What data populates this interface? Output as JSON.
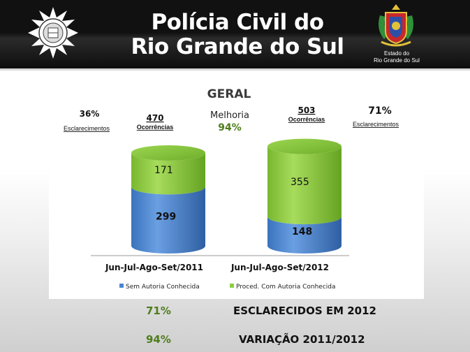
{
  "header": {
    "title_line1": "Polícia Civil do",
    "title_line2": "Rio Grande do Sul",
    "state_line1": "Estado do",
    "state_line2": "Rio Grande do Sul"
  },
  "chart_data": {
    "type": "bar",
    "stacked": true,
    "style": "3d-cylinder",
    "title": "GERAL",
    "categories": [
      "Jun-Jul-Ago-Set/2011",
      "Jun-Jul-Ago-Set/2012"
    ],
    "series": [
      {
        "name": "Sem Autoria Conhecida",
        "values": [
          299,
          148
        ],
        "color": "#4a86d4"
      },
      {
        "name": "Proced. Com Autoria Conhecida",
        "values": [
          171,
          355
        ],
        "color": "#8ccf3f"
      }
    ],
    "totals": [
      {
        "value": "470",
        "label": "Ocorrências"
      },
      {
        "value": "503",
        "label": "Ocorrências"
      }
    ],
    "clearance": [
      {
        "value": "36%",
        "label": "Esclarecimentos"
      },
      {
        "value": "71%",
        "label": "Esclarecimentos"
      }
    ],
    "improvement": {
      "label": "Melhoria",
      "value": "94%"
    },
    "legend_position": "bottom",
    "grid": false
  },
  "summary": [
    {
      "value": "71%",
      "label": "ESCLARECIDOS EM 2012"
    },
    {
      "value": "94%",
      "label": "VARIAÇÃO 2011/2012"
    }
  ]
}
